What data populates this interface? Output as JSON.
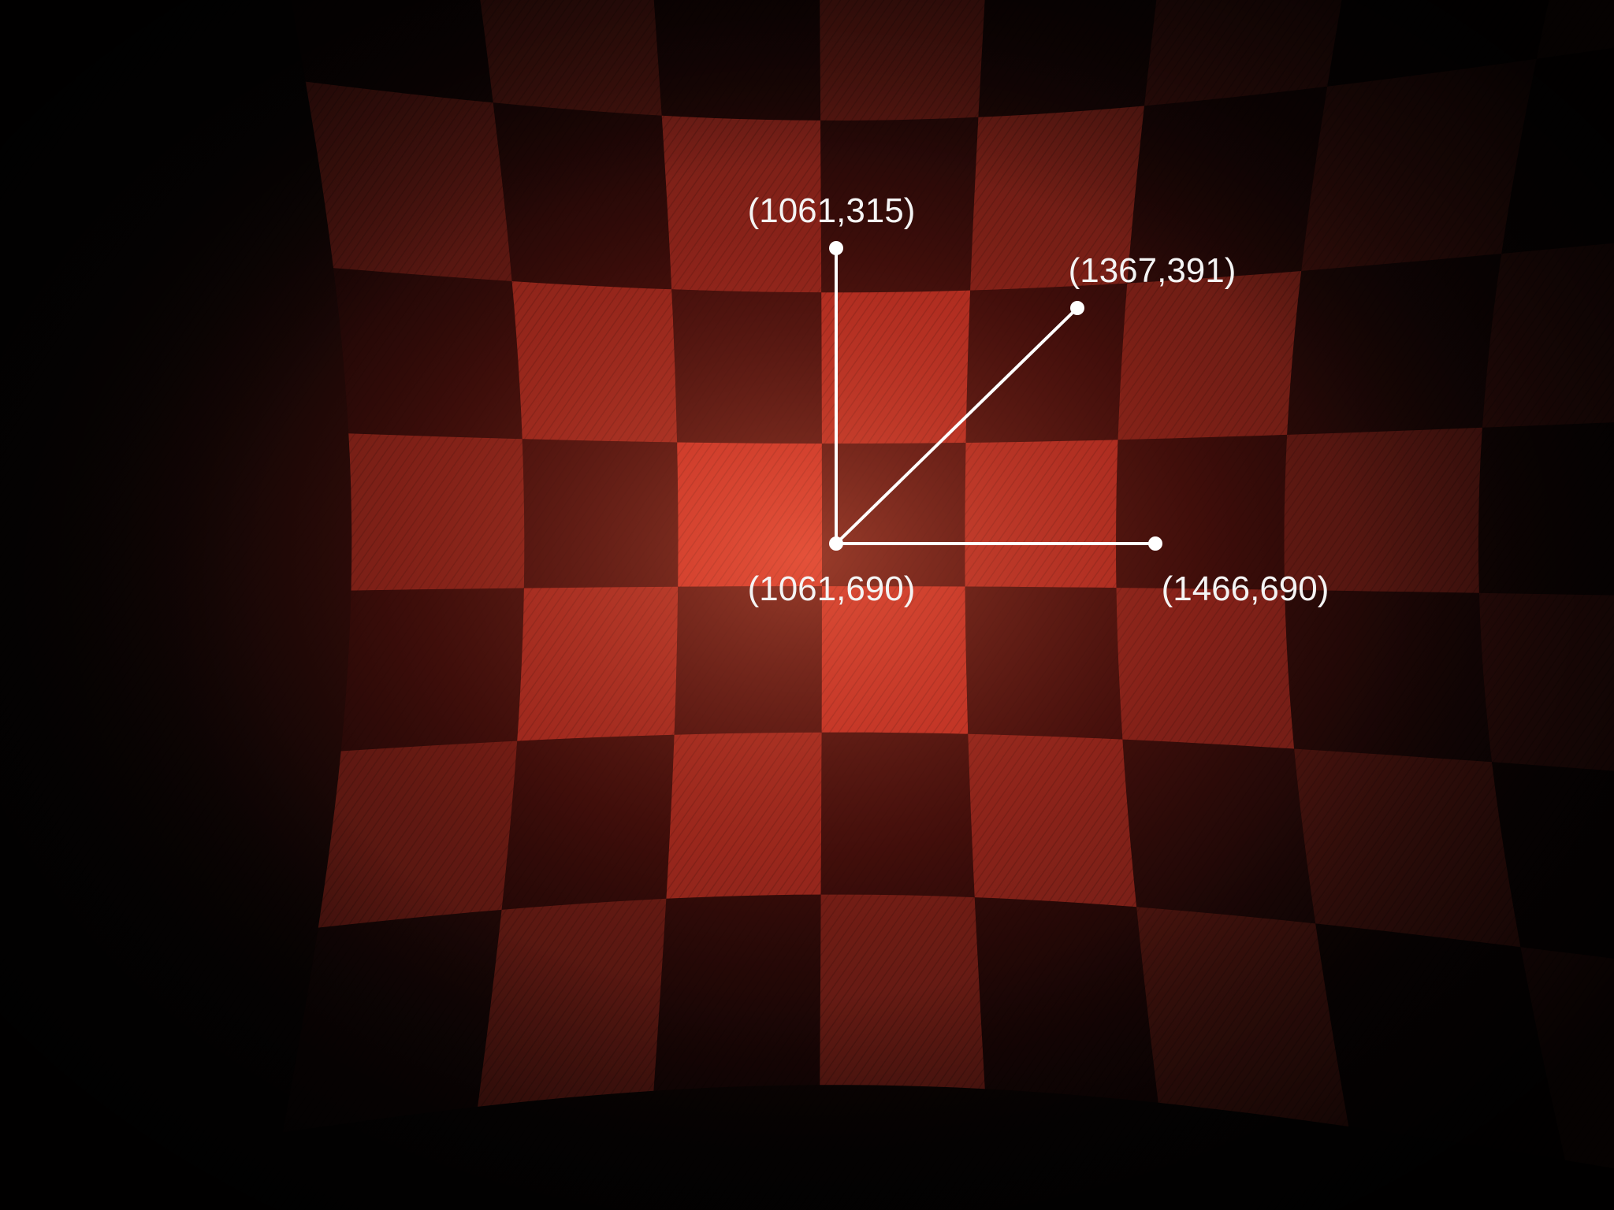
{
  "image": {
    "subject": "distorted red checkerboard projection",
    "background_color": "#060303",
    "accent_red": "#e03c2c",
    "dark_red": "#2a0808",
    "annotation_color": "#ffffff"
  },
  "annotations": {
    "origin": {
      "label": "(1061,690)"
    },
    "top": {
      "label": "(1061,315)"
    },
    "diagonal": {
      "label": "(1367,391)"
    },
    "right": {
      "label": "(1466,690)"
    }
  }
}
